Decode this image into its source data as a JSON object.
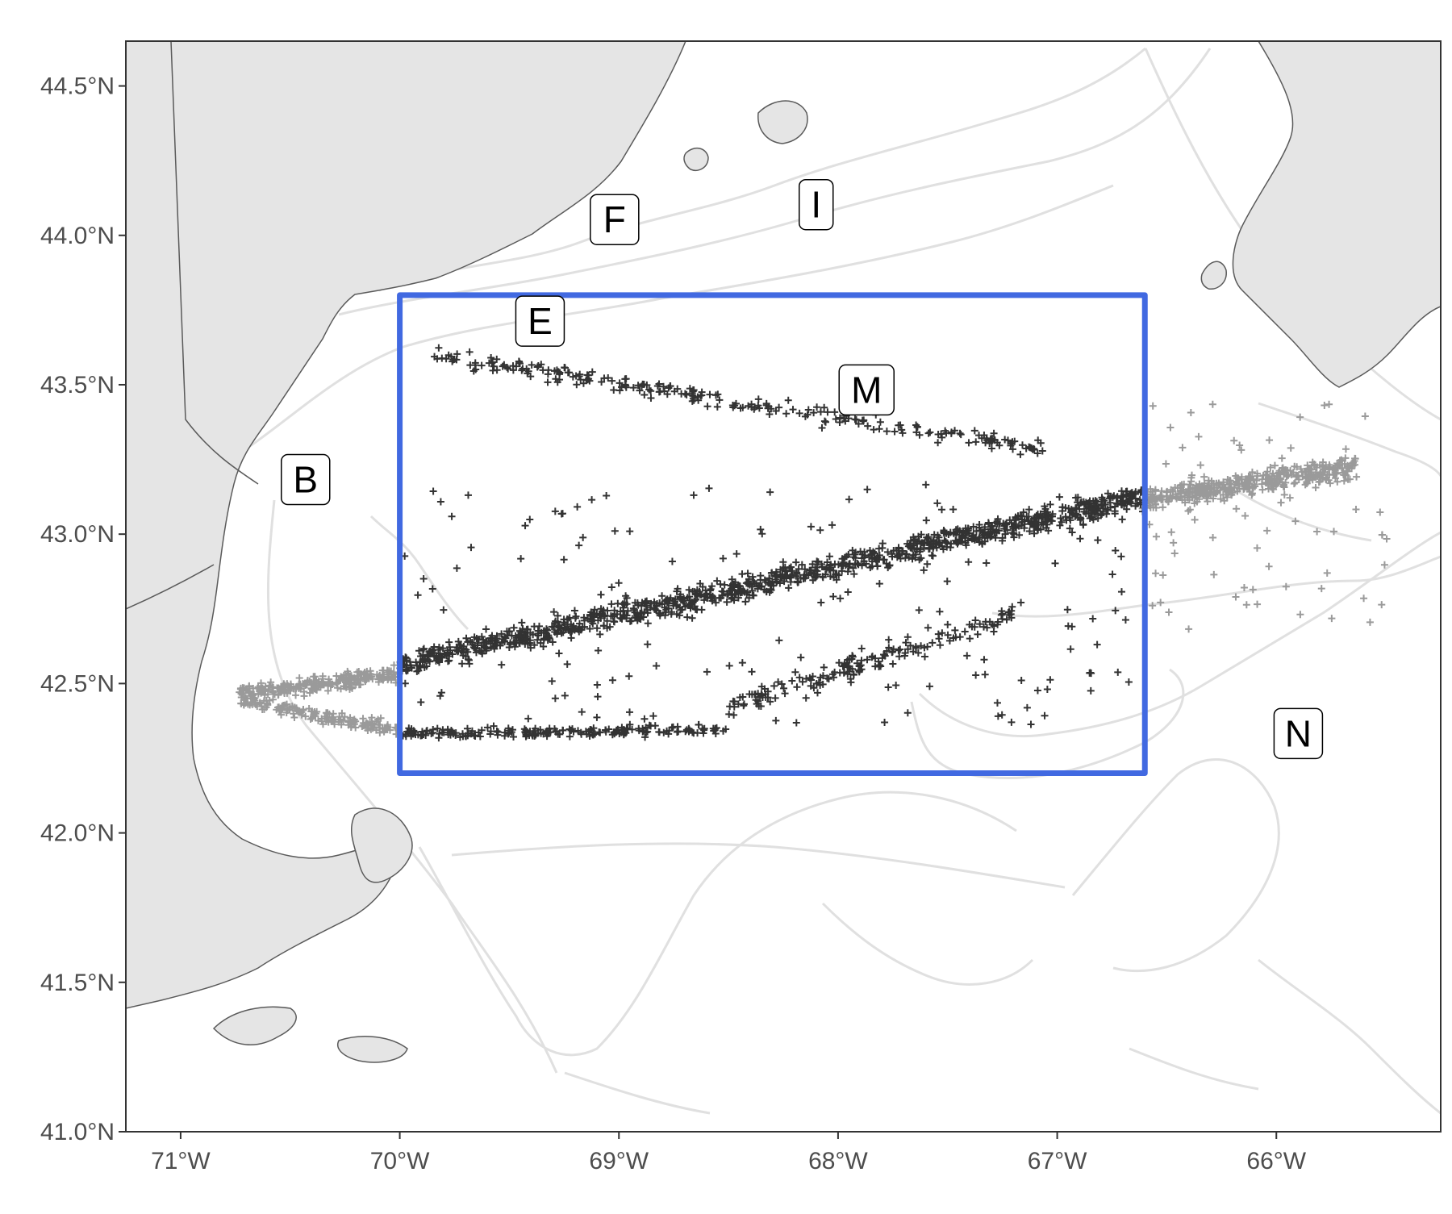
{
  "map": {
    "extent": {
      "lon_min": -71.25,
      "lon_max": 65.25,
      "lat_min": 41.0,
      "lat_max": 44.65
    },
    "x_ticks": [
      {
        "lon": -71,
        "label": "71°W"
      },
      {
        "lon": -70,
        "label": "70°W"
      },
      {
        "lon": -69,
        "label": "69°W"
      },
      {
        "lon": -68,
        "label": "68°W"
      },
      {
        "lon": -67,
        "label": "67°W"
      },
      {
        "lon": -66,
        "label": "66°W"
      }
    ],
    "y_ticks": [
      {
        "lat": 41.0,
        "label": "41.0°N"
      },
      {
        "lat": 41.5,
        "label": "41.5°N"
      },
      {
        "lat": 42.0,
        "label": "42.0°N"
      },
      {
        "lat": 42.5,
        "label": "42.5°N"
      },
      {
        "lat": 43.0,
        "label": "43.0°N"
      },
      {
        "lat": 43.5,
        "label": "43.5°N"
      },
      {
        "lat": 44.0,
        "label": "44.0°N"
      },
      {
        "lat": 44.5,
        "label": "44.5°N"
      }
    ],
    "study_area": {
      "lon_min": -70.0,
      "lon_max": -66.6,
      "lat_min": 42.2,
      "lat_max": 43.8
    },
    "place_labels": [
      {
        "text": "B",
        "lon": -70.43,
        "lat": 43.18
      },
      {
        "text": "E",
        "lon": -69.36,
        "lat": 43.71
      },
      {
        "text": "F",
        "lon": -69.02,
        "lat": 44.05
      },
      {
        "text": "I",
        "lon": -68.1,
        "lat": 44.1
      },
      {
        "text": "M",
        "lon": -67.87,
        "lat": 43.48
      },
      {
        "text": "N",
        "lon": -65.9,
        "lat": 42.33
      }
    ],
    "colors": {
      "land": "#e5e5e5",
      "coast": "#5a5a5a",
      "bathymetry": "#e0e0e0",
      "track_inside": "#333333",
      "track_outside": "#9a9a9a",
      "study_area_box": "#4169e1",
      "frame": "#333333"
    }
  }
}
